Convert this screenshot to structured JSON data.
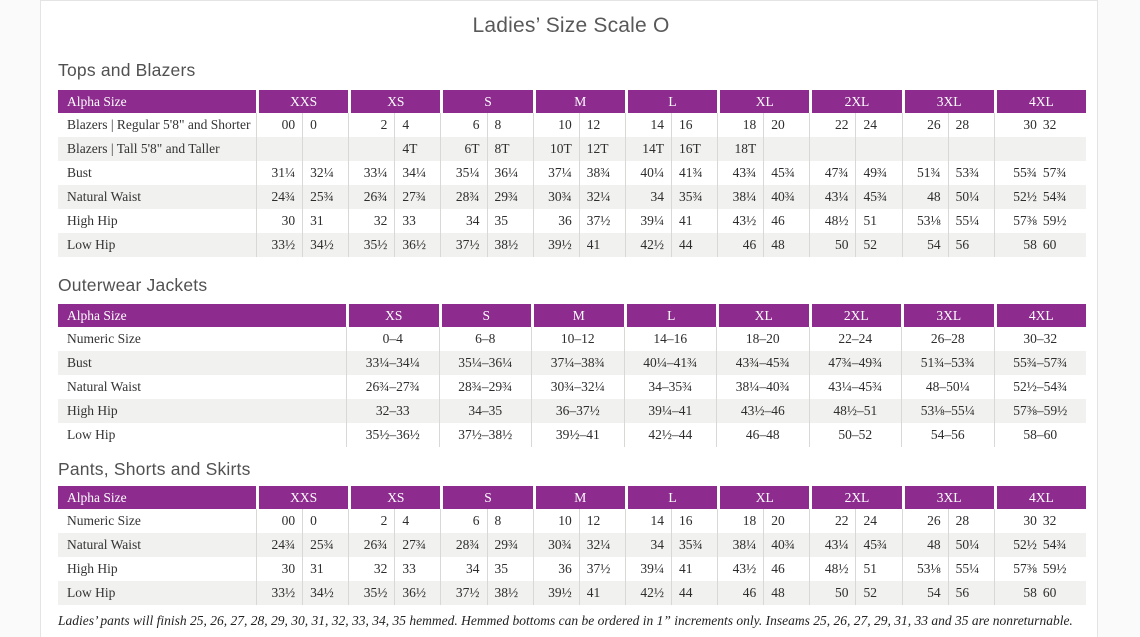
{
  "title": "Ladies’ Size Scale O",
  "footnote": "Ladies’ pants will finish 25, 26, 27, 28, 29, 30, 31, 32, 33, 34, 35 hemmed. Hemmed bottoms can be ordered in 1” increments only. Inseams 25, 26, 27, 29, 31, 33 and 35 are nonreturnable.",
  "colors": {
    "header_purple": "#8d2b8f",
    "row_shade": "#f1f1ef",
    "divider": "#d8d8d6"
  },
  "tables": [
    {
      "heading": "Tops and Blazers",
      "label_header": "Alpha Size",
      "subcols": 2,
      "groups": [
        "XXS",
        "XS",
        "S",
        "M",
        "L",
        "XL",
        "2XL",
        "3XL",
        "4XL"
      ],
      "rows": [
        {
          "label": "Blazers  |  Regular 5'8\" and Shorter",
          "cells": [
            "00",
            "0",
            "2",
            "4",
            "6",
            "8",
            "10",
            "12",
            "14",
            "16",
            "18",
            "20",
            "22",
            "24",
            "26",
            "28",
            "30",
            "32"
          ]
        },
        {
          "label": "Blazers  |  Tall 5'8\" and Taller",
          "cells": [
            "",
            "",
            "",
            "4T",
            "6T",
            "8T",
            "10T",
            "12T",
            "14T",
            "16T",
            "18T",
            "",
            "",
            "",
            "",
            "",
            "",
            ""
          ]
        },
        {
          "label": "Bust",
          "cells": [
            "31¼",
            "32¼",
            "33¼",
            "34¼",
            "35¼",
            "36¼",
            "37¼",
            "38¾",
            "40¼",
            "41¾",
            "43¾",
            "45¾",
            "47¾",
            "49¾",
            "51¾",
            "53¾",
            "55¾",
            "57¾"
          ]
        },
        {
          "label": "Natural Waist",
          "cells": [
            "24¾",
            "25¾",
            "26¾",
            "27¾",
            "28¾",
            "29¾",
            "30¾",
            "32¼",
            "34",
            "35¾",
            "38¼",
            "40¾",
            "43¼",
            "45¾",
            "48",
            "50¼",
            "52½",
            "54¾"
          ]
        },
        {
          "label": "High Hip",
          "cells": [
            "30",
            "31",
            "32",
            "33",
            "34",
            "35",
            "36",
            "37½",
            "39¼",
            "41",
            "43½",
            "46",
            "48½",
            "51",
            "53⅛",
            "55¼",
            "57⅜",
            "59½"
          ]
        },
        {
          "label": "Low Hip",
          "cells": [
            "33½",
            "34½",
            "35½",
            "36½",
            "37½",
            "38½",
            "39½",
            "41",
            "42½",
            "44",
            "46",
            "48",
            "50",
            "52",
            "54",
            "56",
            "58",
            "60"
          ]
        }
      ]
    },
    {
      "heading": "Outerwear Jackets",
      "label_header": "Alpha Size",
      "subcols": 1,
      "groups": [
        "XS",
        "S",
        "M",
        "L",
        "XL",
        "2XL",
        "3XL",
        "4XL"
      ],
      "rows": [
        {
          "label": "Numeric Size",
          "cells": [
            "0–4",
            "6–8",
            "10–12",
            "14–16",
            "18–20",
            "22–24",
            "26–28",
            "30–32"
          ]
        },
        {
          "label": "Bust",
          "cells": [
            "33¼–34¼",
            "35¼–36¼",
            "37¼–38¾",
            "40¼–41¾",
            "43¾–45¾",
            "47¾–49¾",
            "51¾–53¾",
            "55¾–57¾"
          ]
        },
        {
          "label": "Natural Waist",
          "cells": [
            "26¾–27¾",
            "28¾–29¾",
            "30¾–32¼",
            "34–35¾",
            "38¼–40¾",
            "43¼–45¾",
            "48–50¼",
            "52½–54¾"
          ]
        },
        {
          "label": "High Hip",
          "cells": [
            "32–33",
            "34–35",
            "36–37½",
            "39¼–41",
            "43½–46",
            "48½–51",
            "53⅛–55¼",
            "57⅜–59½"
          ]
        },
        {
          "label": "Low Hip",
          "cells": [
            "35½–36½",
            "37½–38½",
            "39½–41",
            "42½–44",
            "46–48",
            "50–52",
            "54–56",
            "58–60"
          ]
        }
      ]
    },
    {
      "heading": "Pants, Shorts and Skirts",
      "label_header": "Alpha Size",
      "subcols": 2,
      "groups": [
        "XXS",
        "XS",
        "S",
        "M",
        "L",
        "XL",
        "2XL",
        "3XL",
        "4XL"
      ],
      "rows": [
        {
          "label": "Numeric Size",
          "cells": [
            "00",
            "0",
            "2",
            "4",
            "6",
            "8",
            "10",
            "12",
            "14",
            "16",
            "18",
            "20",
            "22",
            "24",
            "26",
            "28",
            "30",
            "32"
          ]
        },
        {
          "label": "Natural Waist",
          "cells": [
            "24¾",
            "25¾",
            "26¾",
            "27¾",
            "28¾",
            "29¾",
            "30¾",
            "32¼",
            "34",
            "35¾",
            "38¼",
            "40¾",
            "43¼",
            "45¾",
            "48",
            "50¼",
            "52½",
            "54¾"
          ]
        },
        {
          "label": "High Hip",
          "cells": [
            "30",
            "31",
            "32",
            "33",
            "34",
            "35",
            "36",
            "37½",
            "39¼",
            "41",
            "43½",
            "46",
            "48½",
            "51",
            "53⅛",
            "55¼",
            "57⅜",
            "59½"
          ]
        },
        {
          "label": "Low Hip",
          "cells": [
            "33½",
            "34½",
            "35½",
            "36½",
            "37½",
            "38½",
            "39½",
            "41",
            "42½",
            "44",
            "46",
            "48",
            "50",
            "52",
            "54",
            "56",
            "58",
            "60"
          ]
        }
      ]
    }
  ]
}
